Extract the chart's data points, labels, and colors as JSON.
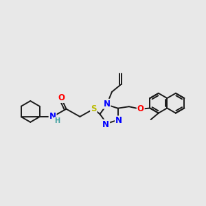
{
  "bg_color": "#e8e8e8",
  "bond_color": "#1a1a1a",
  "N_color": "#0000ff",
  "O_color": "#ff0000",
  "S_color": "#bbbb00",
  "H_color": "#40a0a0",
  "line_width": 1.4,
  "font_size": 8.5,
  "fig_size": [
    3.0,
    3.0
  ],
  "dpi": 100,
  "xlim": [
    0,
    12
  ],
  "ylim": [
    0,
    12
  ]
}
